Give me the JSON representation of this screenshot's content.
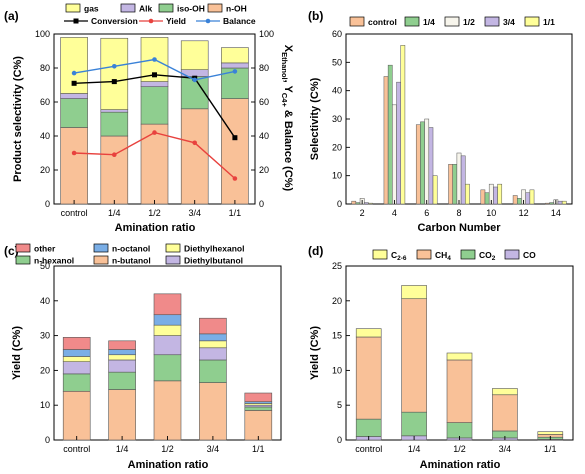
{
  "chart_data": [
    {
      "panel": "(a)",
      "type": "bar",
      "stacked": true,
      "categories": [
        "control",
        "1/4",
        "1/2",
        "3/4",
        "1/1"
      ],
      "xlabel": "Amination ratio",
      "ylabel": "Product selectivity (C%)",
      "y2label": "X_Ethanol, Y_C4+ & Balance (C%)",
      "ylim": [
        0,
        100
      ],
      "y2lim": [
        0,
        100
      ],
      "yticks": [
        0,
        20,
        40,
        60,
        80,
        100
      ],
      "y2ticks": [
        0,
        20,
        40,
        60,
        80,
        100
      ],
      "series": [
        {
          "name": "n-OH",
          "color": "#f9c198",
          "values": [
            45,
            40,
            47,
            56,
            62
          ]
        },
        {
          "name": "iso-OH",
          "color": "#8fce8f",
          "values": [
            17,
            14,
            22,
            19,
            18
          ]
        },
        {
          "name": "Alk",
          "color": "#c3b6e3",
          "values": [
            3,
            1.5,
            3,
            4,
            3
          ]
        },
        {
          "name": "gas",
          "color": "#ffff99",
          "values": [
            33,
            42,
            26,
            17,
            9
          ]
        }
      ],
      "lines": [
        {
          "name": "Conversion",
          "color": "#000000",
          "marker": "square",
          "values": [
            71,
            72,
            76,
            74,
            39
          ]
        },
        {
          "name": "Yield",
          "color": "#e8423e",
          "marker": "circle",
          "values": [
            30,
            29,
            42,
            36,
            15
          ]
        },
        {
          "name": "Balance",
          "color": "#3a82d8",
          "marker": "circle",
          "values": [
            77,
            81,
            85,
            73,
            78
          ]
        }
      ]
    },
    {
      "panel": "(b)",
      "type": "bar",
      "grouped": true,
      "categories": [
        "2",
        "4",
        "6",
        "8",
        "10",
        "12",
        "14"
      ],
      "xlabel": "Carbon Number",
      "ylabel": "Selectivity (C%)",
      "ylim": [
        0,
        60
      ],
      "yticks": [
        0,
        10,
        20,
        30,
        40,
        50,
        60
      ],
      "series": [
        {
          "name": "control",
          "color": "#f9c198",
          "values": [
            1,
            45,
            28,
            14,
            5,
            3,
            0.3
          ]
        },
        {
          "name": "1/4",
          "color": "#8fce8f",
          "values": [
            0.5,
            49,
            29,
            14,
            4,
            2,
            0.5
          ]
        },
        {
          "name": "1/2",
          "color": "#f7f5ec",
          "values": [
            2,
            35,
            30,
            18,
            7,
            5,
            1.5
          ]
        },
        {
          "name": "3/4",
          "color": "#c3b6e3",
          "values": [
            0.5,
            43,
            27,
            17,
            6,
            4,
            1
          ]
        },
        {
          "name": "1/1",
          "color": "#ffff99",
          "values": [
            0.3,
            56,
            10,
            7,
            7,
            5,
            1
          ]
        }
      ]
    },
    {
      "panel": "(c)",
      "type": "bar",
      "stacked": true,
      "categories": [
        "control",
        "1/4",
        "1/2",
        "3/4",
        "1/1"
      ],
      "xlabel": "Amination ratio",
      "ylabel": "Yield (C%)",
      "ylim": [
        0,
        50
      ],
      "yticks": [
        0,
        10,
        20,
        30,
        40,
        50
      ],
      "series": [
        {
          "name": "n-butanol",
          "color": "#f9c198",
          "values": [
            14,
            14.5,
            17,
            16.5,
            8.5
          ]
        },
        {
          "name": "n-hexanol",
          "color": "#8fce8f",
          "values": [
            5,
            5,
            7.5,
            6.5,
            1
          ]
        },
        {
          "name": "Diethylbutanol",
          "color": "#c3b6e3",
          "values": [
            3.5,
            3.5,
            5.5,
            3.5,
            0.5
          ]
        },
        {
          "name": "Diethylhexanol",
          "color": "#ffff99",
          "values": [
            1.5,
            1.5,
            3,
            2,
            0.5
          ]
        },
        {
          "name": "n-octanol",
          "color": "#7aaee6",
          "values": [
            2,
            1.5,
            3,
            2,
            0.5
          ]
        },
        {
          "name": "other",
          "color": "#f08a8a",
          "values": [
            3.5,
            2.5,
            6,
            4.5,
            2.5
          ]
        }
      ]
    },
    {
      "panel": "(d)",
      "type": "bar",
      "stacked": true,
      "categories": [
        "control",
        "1/4",
        "1/2",
        "3/4",
        "1/1"
      ],
      "xlabel": "Amination ratio",
      "ylabel": "Yield (C%)",
      "ylim": [
        0,
        25
      ],
      "yticks": [
        0,
        5,
        10,
        15,
        20,
        25
      ],
      "series": [
        {
          "name": "CO",
          "color": "#c3b6e3",
          "values": [
            0.5,
            0.6,
            0.3,
            0.3,
            0.1
          ]
        },
        {
          "name": "CO2",
          "color": "#8fce8f",
          "values": [
            2.5,
            3.4,
            2.2,
            1.0,
            0.3
          ]
        },
        {
          "name": "CH4",
          "color": "#f9c198",
          "values": [
            11.8,
            16.3,
            9.0,
            5.2,
            0.4
          ]
        },
        {
          "name": "C2-6",
          "color": "#ffff99",
          "values": [
            1.2,
            1.9,
            1.0,
            0.9,
            0.4
          ]
        }
      ]
    }
  ],
  "labels": {
    "a": {
      "panel": "(a)",
      "ylabel": "Product selectivity (C%)",
      "xlabel": "Amination ratio",
      "y2_main": "X",
      "y2_sub1": "Ethanol",
      "y2_mid": ", Y",
      "y2_sub2": "C4+",
      "y2_end": " & Balance (C%)",
      "legend": {
        "gas": "gas",
        "alk": "Alk",
        "isooh": "iso-OH",
        "noh": "n-OH",
        "conversion": "Conversion",
        "yield": "Yield",
        "balance": "Balance"
      }
    },
    "b": {
      "panel": "(b)",
      "ylabel": "Selectivity (C%)",
      "xlabel": "Carbon Number",
      "legend": {
        "control": "control",
        "q14": "1/4",
        "q12": "1/2",
        "q34": "3/4",
        "q11": "1/1"
      }
    },
    "c": {
      "panel": "(c)",
      "ylabel": "Yield (C%)",
      "xlabel": "Amination ratio",
      "legend": {
        "other": "other",
        "noctanol": "n-octanol",
        "diethylhexanol": "Diethylhexanol",
        "nhexanol": "n-hexanol",
        "nbutanol": "n-butanol",
        "diethylbutanol": "Diethylbutanol"
      }
    },
    "d": {
      "panel": "(d)",
      "ylabel": "Yield (C%)",
      "xlabel": "Amination ratio",
      "legend": {
        "c26_main": "C",
        "c26_sub": "2-6",
        "ch4_main": "CH",
        "ch4_sub": "4",
        "co2_main": "CO",
        "co2_sub": "2",
        "co": "CO"
      }
    }
  }
}
